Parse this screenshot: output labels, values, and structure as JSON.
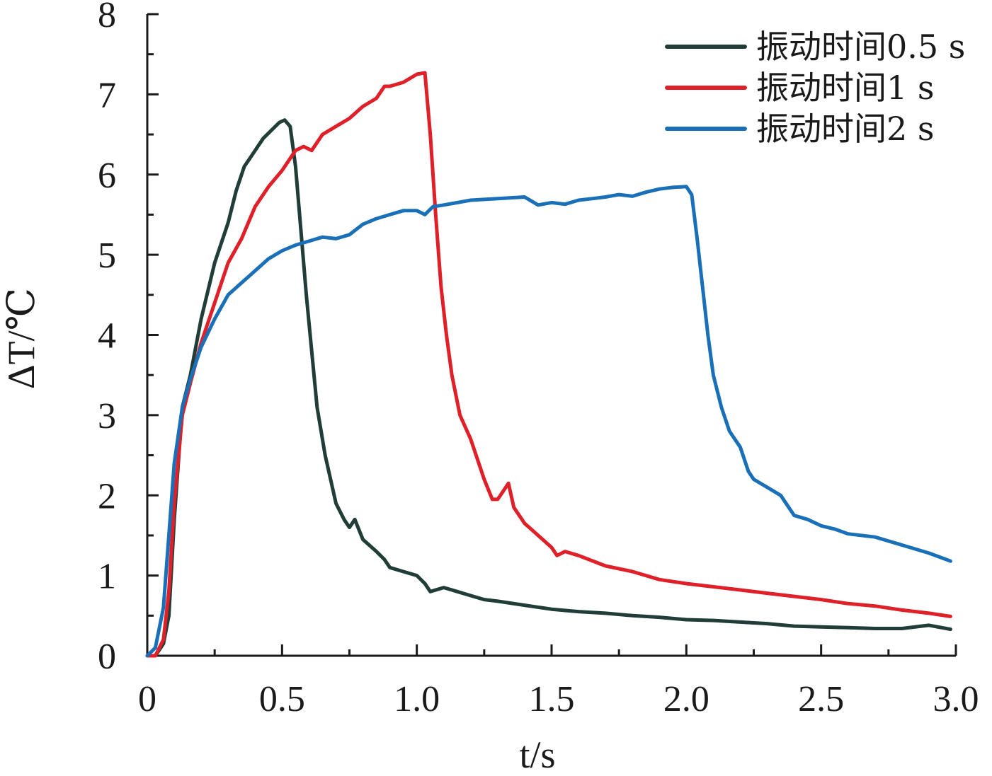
{
  "chart_data": {
    "type": "line",
    "xlabel": "t/s",
    "ylabel": "ΔT/℃",
    "xlim": [
      0,
      3.0
    ],
    "ylim": [
      0,
      8
    ],
    "x_ticks": [
      "0",
      "0.5",
      "1.0",
      "1.5",
      "2.0",
      "2.5",
      "3.0"
    ],
    "x_tick_values": [
      0,
      0.5,
      1.0,
      1.5,
      2.0,
      2.5,
      3.0
    ],
    "y_ticks": [
      "0",
      "1",
      "2",
      "3",
      "4",
      "5",
      "6",
      "7",
      "8"
    ],
    "y_tick_values": [
      0,
      1,
      2,
      3,
      4,
      5,
      6,
      7,
      8
    ],
    "grid": false,
    "legend_position": "top-right",
    "series": [
      {
        "name": "振动时间0.5 s",
        "color": "#213d38",
        "x": [
          0.0,
          0.03,
          0.06,
          0.08,
          0.1,
          0.13,
          0.16,
          0.2,
          0.25,
          0.3,
          0.33,
          0.36,
          0.38,
          0.4,
          0.43,
          0.46,
          0.49,
          0.51,
          0.53,
          0.55,
          0.57,
          0.59,
          0.61,
          0.63,
          0.66,
          0.7,
          0.73,
          0.75,
          0.77,
          0.8,
          0.85,
          0.88,
          0.9,
          0.95,
          1.0,
          1.03,
          1.05,
          1.1,
          1.15,
          1.2,
          1.25,
          1.3,
          1.4,
          1.5,
          1.6,
          1.7,
          1.8,
          1.9,
          2.0,
          2.1,
          2.2,
          2.3,
          2.4,
          2.5,
          2.6,
          2.7,
          2.8,
          2.9,
          2.98
        ],
        "values": [
          0.0,
          0.0,
          0.15,
          0.5,
          1.7,
          3.1,
          3.5,
          4.2,
          4.9,
          5.4,
          5.8,
          6.1,
          6.2,
          6.3,
          6.45,
          6.55,
          6.65,
          6.68,
          6.6,
          6.1,
          5.3,
          4.5,
          3.8,
          3.1,
          2.5,
          1.9,
          1.7,
          1.6,
          1.7,
          1.45,
          1.3,
          1.2,
          1.1,
          1.05,
          1.0,
          0.9,
          0.8,
          0.85,
          0.8,
          0.75,
          0.7,
          0.68,
          0.63,
          0.58,
          0.55,
          0.53,
          0.5,
          0.48,
          0.45,
          0.44,
          0.42,
          0.4,
          0.37,
          0.36,
          0.35,
          0.34,
          0.34,
          0.38,
          0.33
        ]
      },
      {
        "name": "振动时间1 s",
        "color": "#e02028",
        "x": [
          0.0,
          0.03,
          0.06,
          0.08,
          0.1,
          0.13,
          0.16,
          0.2,
          0.25,
          0.3,
          0.35,
          0.4,
          0.45,
          0.5,
          0.55,
          0.58,
          0.61,
          0.65,
          0.7,
          0.75,
          0.8,
          0.85,
          0.88,
          0.9,
          0.95,
          1.0,
          1.03,
          1.05,
          1.07,
          1.09,
          1.11,
          1.13,
          1.16,
          1.2,
          1.25,
          1.28,
          1.3,
          1.32,
          1.34,
          1.36,
          1.4,
          1.45,
          1.5,
          1.52,
          1.55,
          1.6,
          1.7,
          1.8,
          1.85,
          1.9,
          2.0,
          2.1,
          2.2,
          2.3,
          2.4,
          2.5,
          2.6,
          2.7,
          2.8,
          2.9,
          2.98
        ],
        "values": [
          0.0,
          0.0,
          0.2,
          0.8,
          1.9,
          3.0,
          3.4,
          3.9,
          4.4,
          4.9,
          5.2,
          5.6,
          5.85,
          6.05,
          6.3,
          6.35,
          6.3,
          6.5,
          6.6,
          6.7,
          6.85,
          6.95,
          7.1,
          7.1,
          7.15,
          7.25,
          7.27,
          6.5,
          5.5,
          4.6,
          4.0,
          3.5,
          3.0,
          2.7,
          2.2,
          1.95,
          1.95,
          2.05,
          2.15,
          1.85,
          1.65,
          1.5,
          1.35,
          1.25,
          1.3,
          1.25,
          1.12,
          1.05,
          1.0,
          0.95,
          0.9,
          0.86,
          0.82,
          0.78,
          0.74,
          0.7,
          0.65,
          0.62,
          0.57,
          0.53,
          0.49
        ]
      },
      {
        "name": "振动时间2 s",
        "color": "#1a70b8",
        "x": [
          0.0,
          0.03,
          0.06,
          0.08,
          0.1,
          0.13,
          0.16,
          0.2,
          0.25,
          0.3,
          0.35,
          0.4,
          0.45,
          0.5,
          0.55,
          0.6,
          0.65,
          0.7,
          0.75,
          0.8,
          0.85,
          0.9,
          0.95,
          1.0,
          1.03,
          1.06,
          1.1,
          1.15,
          1.2,
          1.3,
          1.4,
          1.45,
          1.5,
          1.55,
          1.6,
          1.65,
          1.7,
          1.75,
          1.8,
          1.85,
          1.9,
          1.95,
          2.0,
          2.02,
          2.04,
          2.06,
          2.08,
          2.1,
          2.13,
          2.16,
          2.2,
          2.23,
          2.25,
          2.3,
          2.35,
          2.4,
          2.45,
          2.5,
          2.55,
          2.6,
          2.7,
          2.8,
          2.9,
          2.98
        ],
        "values": [
          0.0,
          0.1,
          0.6,
          1.5,
          2.4,
          3.1,
          3.45,
          3.85,
          4.2,
          4.5,
          4.65,
          4.8,
          4.95,
          5.05,
          5.12,
          5.17,
          5.22,
          5.2,
          5.25,
          5.38,
          5.45,
          5.5,
          5.55,
          5.55,
          5.5,
          5.6,
          5.62,
          5.65,
          5.68,
          5.7,
          5.72,
          5.62,
          5.65,
          5.63,
          5.68,
          5.7,
          5.72,
          5.75,
          5.73,
          5.78,
          5.82,
          5.84,
          5.85,
          5.75,
          5.2,
          4.6,
          4.0,
          3.5,
          3.1,
          2.8,
          2.6,
          2.3,
          2.2,
          2.1,
          2.0,
          1.75,
          1.7,
          1.62,
          1.58,
          1.52,
          1.48,
          1.38,
          1.28,
          1.18
        ]
      }
    ]
  }
}
